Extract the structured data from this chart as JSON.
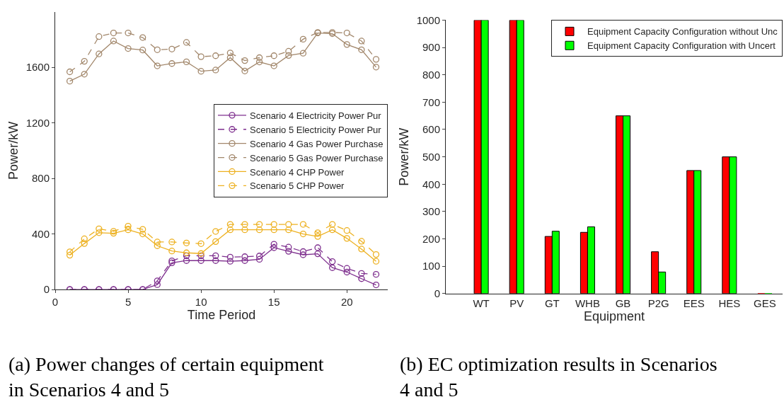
{
  "chart_data": [
    {
      "type": "line",
      "xlabel": "Time Period",
      "ylabel": "Power/kW",
      "xlim": [
        0,
        22.8
      ],
      "xticks": [
        0,
        5,
        10,
        15,
        20
      ],
      "ylim": [
        0,
        2000
      ],
      "yticks": [
        0,
        400,
        800,
        1200,
        1600
      ],
      "legend": "right",
      "marker": "circle",
      "x": [
        1,
        2,
        3,
        4,
        5,
        6,
        7,
        8,
        9,
        10,
        11,
        12,
        13,
        14,
        15,
        16,
        17,
        18,
        19,
        20,
        21,
        22
      ],
      "series": [
        {
          "name": "Scenario 4 Electricity Power Pur",
          "color": "#7e2f8e",
          "line_style": "solid",
          "values": [
            0,
            0,
            0,
            0,
            0,
            0,
            35,
            192,
            208,
            208,
            208,
            203,
            208,
            217,
            301,
            275,
            250,
            257,
            157,
            125,
            78,
            33
          ]
        },
        {
          "name": "Scenario 5 Electricity Power Pur",
          "color": "#7e2f8e",
          "line_style": "dashed",
          "values": [
            0,
            0,
            0,
            0,
            0,
            0,
            62,
            206,
            243,
            243,
            243,
            233,
            236,
            241,
            326,
            305,
            273,
            301,
            201,
            152,
            116,
            109
          ]
        },
        {
          "name": "Scenario 4 Gas Power Purchase",
          "color": "#a2876b",
          "line_style": "solid",
          "values": [
            1501,
            1551,
            1697,
            1790,
            1736,
            1725,
            1611,
            1628,
            1640,
            1572,
            1581,
            1670,
            1574,
            1639,
            1611,
            1686,
            1702,
            1848,
            1843,
            1765,
            1727,
            1602
          ]
        },
        {
          "name": "Scenario 5 Gas Power Purchase",
          "color": "#a2876b",
          "line_style": "dashed",
          "values": [
            1568,
            1644,
            1822,
            1848,
            1848,
            1815,
            1727,
            1732,
            1780,
            1677,
            1684,
            1704,
            1649,
            1670,
            1684,
            1716,
            1803,
            1852,
            1852,
            1848,
            1790,
            1658
          ]
        },
        {
          "name": "Scenario 4 CHP Power",
          "color": "#edb120",
          "line_style": "solid",
          "values": [
            247,
            331,
            409,
            405,
            430,
            400,
            315,
            277,
            264,
            259,
            345,
            430,
            430,
            430,
            430,
            430,
            400,
            382,
            430,
            368,
            291,
            203
          ]
        },
        {
          "name": "Scenario 5 CHP Power",
          "color": "#edb120",
          "line_style": "dashed",
          "values": [
            271,
            365,
            437,
            419,
            456,
            433,
            342,
            342,
            335,
            330,
            418,
            469,
            469,
            469,
            469,
            469,
            469,
            409,
            469,
            425,
            347,
            252
          ]
        }
      ],
      "annotations": [
        "(a) Power changes of certain equipment in Scenarios 4 and 5"
      ]
    },
    {
      "type": "bar",
      "xlabel": "Equipment",
      "ylabel": "Power/kW",
      "ylim": [
        0,
        1000
      ],
      "yticks": [
        0,
        100,
        200,
        300,
        400,
        500,
        600,
        700,
        800,
        900,
        1000
      ],
      "legend": "top right",
      "categories": [
        "WT",
        "PV",
        "GT",
        "WHB",
        "GB",
        "P2G",
        "EES",
        "HES",
        "GES"
      ],
      "series": [
        {
          "name": "Equipment Capacity Configuration without Unc",
          "color": "#ff0000",
          "values": [
            1000,
            1000,
            209,
            224,
            650,
            153,
            450,
            500,
            0
          ]
        },
        {
          "name": "Equipment Capacity Configuration with Uncert",
          "color": "#00ff00",
          "values": [
            1000,
            1000,
            228,
            244,
            650,
            79,
            450,
            500,
            0
          ]
        }
      ],
      "annotations": [
        "(b) EC optimization results in Scenarios 4 and 5"
      ]
    }
  ]
}
